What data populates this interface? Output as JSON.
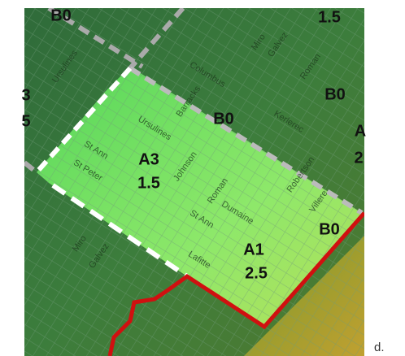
{
  "zones": [
    "B0",
    "1.5",
    "B0",
    "B0",
    "A3",
    "1.5",
    "A1",
    "2.5",
    "B0",
    "A",
    "2",
    "3",
    "5"
  ],
  "streets": [
    "Ursulines",
    "Columbus",
    "Barracks",
    "Ursulines",
    "Kerlerec",
    "Miro",
    "Galvez",
    "Roman",
    "St Ann",
    "St Peter",
    "Johnson",
    "Roman",
    "St Ann",
    "Dumaine",
    "Robertson",
    "Villere",
    "Lafitte",
    "Miro",
    "Galvez"
  ],
  "caption": "d."
}
